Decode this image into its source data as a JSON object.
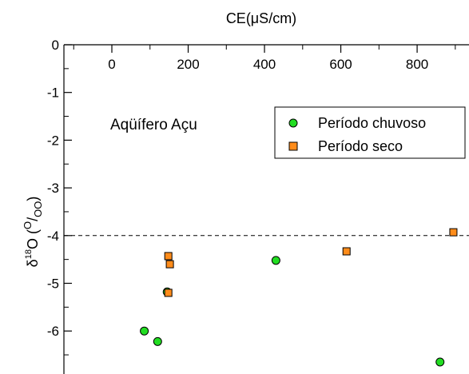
{
  "chart_data": {
    "type": "scatter",
    "title": "",
    "xlabel": "CE(μS/cm)",
    "ylabel": "δ¹⁸O (⁰/₀₀)",
    "ylabel_parts": {
      "delta": "δ",
      "sup18": "18",
      "o": "O (",
      "sup_o": "O",
      "slash": "/",
      "sub_oo": "OO",
      "close": ")"
    },
    "x_axis_position": "top",
    "xlim": [
      -120,
      900
    ],
    "ylim": [
      -6.7,
      0
    ],
    "x_ticks": [
      0,
      200,
      400,
      600,
      800
    ],
    "y_ticks": [
      0,
      -1,
      -2,
      -3,
      -4,
      -5,
      -6
    ],
    "reference_line": {
      "y": -4,
      "style": "dashed"
    },
    "annotation": "Aqüífero Açu",
    "legend_position": "top-right",
    "series": [
      {
        "name": "Período chuvoso",
        "marker": "circle",
        "color": "#22dd22",
        "points": [
          {
            "x": 85,
            "y": -6.0
          },
          {
            "x": 120,
            "y": -6.22
          },
          {
            "x": 145,
            "y": -5.18
          },
          {
            "x": 430,
            "y": -4.52
          },
          {
            "x": 860,
            "y": -6.65
          }
        ]
      },
      {
        "name": "Período seco",
        "marker": "square",
        "color": "#ff8c1a",
        "points": [
          {
            "x": 148,
            "y": -4.43
          },
          {
            "x": 152,
            "y": -4.6
          },
          {
            "x": 148,
            "y": -5.2
          },
          {
            "x": 615,
            "y": -4.33
          },
          {
            "x": 895,
            "y": -3.93
          }
        ]
      }
    ]
  }
}
